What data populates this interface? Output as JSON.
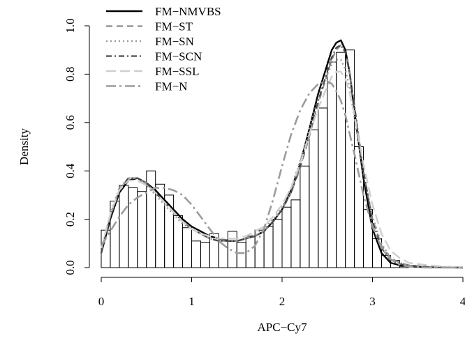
{
  "chart_data": {
    "type": "histogram",
    "title": "",
    "xlabel": "APC−Cy7",
    "ylabel": "Density",
    "xlim": [
      0,
      4
    ],
    "ylim": [
      0,
      1.0
    ],
    "x_ticks": [
      0,
      1,
      2,
      3,
      4
    ],
    "y_ticks": [
      0.0,
      0.2,
      0.4,
      0.6,
      0.8,
      1.0
    ],
    "x_tick_labels": [
      "0",
      "1",
      "2",
      "3",
      "4"
    ],
    "y_tick_labels": [
      "0.0",
      "0.2",
      "0.4",
      "0.6",
      "0.8",
      "1.0"
    ],
    "grid": false,
    "legend_position": "top-left",
    "histogram": {
      "bin_width": 0.1,
      "bin_starts": [
        0.0,
        0.1,
        0.2,
        0.3,
        0.4,
        0.5,
        0.6,
        0.7,
        0.8,
        0.9,
        1.0,
        1.1,
        1.2,
        1.3,
        1.4,
        1.5,
        1.6,
        1.7,
        1.8,
        1.9,
        2.0,
        2.1,
        2.2,
        2.3,
        2.4,
        2.5,
        2.6,
        2.7,
        2.8,
        2.9,
        3.0,
        3.1,
        3.2,
        3.3
      ],
      "densities": [
        0.155,
        0.275,
        0.34,
        0.33,
        0.315,
        0.4,
        0.345,
        0.3,
        0.215,
        0.165,
        0.11,
        0.105,
        0.14,
        0.115,
        0.15,
        0.105,
        0.13,
        0.155,
        0.17,
        0.2,
        0.25,
        0.28,
        0.42,
        0.57,
        0.66,
        0.85,
        0.89,
        0.9,
        0.5,
        0.24,
        0.12,
        0.05,
        0.03,
        0.005
      ]
    },
    "series": [
      {
        "name": "FM−NMVBS",
        "line_style": "solid",
        "color": "#000000",
        "x": [
          0.0,
          0.1,
          0.2,
          0.3,
          0.4,
          0.5,
          0.6,
          0.7,
          0.8,
          0.9,
          1.0,
          1.1,
          1.2,
          1.3,
          1.4,
          1.5,
          1.6,
          1.7,
          1.8,
          1.9,
          2.0,
          2.1,
          2.2,
          2.3,
          2.4,
          2.5,
          2.55,
          2.6,
          2.65,
          2.7,
          2.75,
          2.8,
          2.9,
          3.0,
          3.1,
          3.2,
          3.3,
          3.4,
          3.6,
          3.8,
          4.0
        ],
        "y": [
          0.06,
          0.2,
          0.31,
          0.36,
          0.37,
          0.35,
          0.32,
          0.28,
          0.24,
          0.2,
          0.17,
          0.15,
          0.13,
          0.12,
          0.11,
          0.11,
          0.12,
          0.13,
          0.15,
          0.19,
          0.24,
          0.32,
          0.43,
          0.57,
          0.72,
          0.84,
          0.9,
          0.93,
          0.94,
          0.9,
          0.8,
          0.65,
          0.37,
          0.16,
          0.06,
          0.02,
          0.01,
          0.005,
          0.002,
          0.001,
          0.0
        ]
      },
      {
        "name": "FM−ST",
        "line_style": "dashed",
        "color": "#8a8a8a",
        "x": [
          0.0,
          0.1,
          0.2,
          0.3,
          0.4,
          0.5,
          0.6,
          0.7,
          0.8,
          0.9,
          1.0,
          1.1,
          1.2,
          1.3,
          1.4,
          1.5,
          1.6,
          1.7,
          1.8,
          1.9,
          2.0,
          2.1,
          2.2,
          2.3,
          2.4,
          2.5,
          2.55,
          2.6,
          2.65,
          2.7,
          2.75,
          2.8,
          2.9,
          3.0,
          3.1,
          3.2,
          3.3,
          3.4,
          3.6,
          3.8,
          4.0
        ],
        "y": [
          0.06,
          0.21,
          0.32,
          0.37,
          0.37,
          0.35,
          0.31,
          0.27,
          0.23,
          0.19,
          0.16,
          0.14,
          0.12,
          0.11,
          0.11,
          0.11,
          0.12,
          0.13,
          0.15,
          0.19,
          0.24,
          0.31,
          0.41,
          0.54,
          0.68,
          0.8,
          0.86,
          0.9,
          0.92,
          0.89,
          0.8,
          0.67,
          0.4,
          0.2,
          0.09,
          0.04,
          0.02,
          0.01,
          0.004,
          0.002,
          0.001
        ]
      },
      {
        "name": "FM−SN",
        "line_style": "dotted",
        "color": "#9a9a9a",
        "x": [
          0.0,
          0.1,
          0.2,
          0.3,
          0.4,
          0.5,
          0.6,
          0.7,
          0.8,
          0.9,
          1.0,
          1.1,
          1.2,
          1.3,
          1.4,
          1.5,
          1.6,
          1.7,
          1.8,
          1.9,
          2.0,
          2.1,
          2.2,
          2.3,
          2.4,
          2.5,
          2.55,
          2.6,
          2.65,
          2.7,
          2.75,
          2.8,
          2.9,
          3.0,
          3.1,
          3.2,
          3.3,
          3.4,
          3.6,
          3.8,
          4.0
        ],
        "y": [
          0.07,
          0.22,
          0.33,
          0.37,
          0.37,
          0.34,
          0.3,
          0.26,
          0.22,
          0.18,
          0.16,
          0.14,
          0.12,
          0.11,
          0.11,
          0.11,
          0.12,
          0.14,
          0.16,
          0.2,
          0.25,
          0.33,
          0.44,
          0.57,
          0.7,
          0.8,
          0.84,
          0.86,
          0.86,
          0.82,
          0.74,
          0.62,
          0.39,
          0.21,
          0.1,
          0.04,
          0.02,
          0.01,
          0.003,
          0.001,
          0.0
        ]
      },
      {
        "name": "FM−SCN",
        "line_style": "dash-dot",
        "color": "#4a4a4a",
        "x": [
          0.0,
          0.1,
          0.2,
          0.3,
          0.4,
          0.5,
          0.6,
          0.7,
          0.8,
          0.9,
          1.0,
          1.1,
          1.2,
          1.3,
          1.4,
          1.5,
          1.6,
          1.7,
          1.8,
          1.9,
          2.0,
          2.1,
          2.2,
          2.3,
          2.4,
          2.5,
          2.55,
          2.6,
          2.65,
          2.7,
          2.75,
          2.8,
          2.9,
          3.0,
          3.1,
          3.2,
          3.3,
          3.4,
          3.6,
          3.8,
          4.0
        ],
        "y": [
          0.06,
          0.21,
          0.32,
          0.37,
          0.37,
          0.35,
          0.31,
          0.27,
          0.23,
          0.19,
          0.16,
          0.14,
          0.12,
          0.11,
          0.11,
          0.11,
          0.12,
          0.13,
          0.15,
          0.19,
          0.24,
          0.31,
          0.42,
          0.55,
          0.69,
          0.81,
          0.87,
          0.91,
          0.92,
          0.89,
          0.8,
          0.67,
          0.4,
          0.19,
          0.08,
          0.03,
          0.015,
          0.008,
          0.003,
          0.001,
          0.0
        ]
      },
      {
        "name": "FM−SSL",
        "line_style": "long-dash",
        "color": "#cfcfcf",
        "x": [
          0.0,
          0.1,
          0.2,
          0.3,
          0.4,
          0.5,
          0.6,
          0.7,
          0.8,
          0.9,
          1.0,
          1.1,
          1.2,
          1.3,
          1.4,
          1.5,
          1.6,
          1.7,
          1.8,
          1.9,
          2.0,
          2.1,
          2.2,
          2.3,
          2.4,
          2.5,
          2.55,
          2.6,
          2.65,
          2.7,
          2.75,
          2.8,
          2.9,
          3.0,
          3.1,
          3.2,
          3.3,
          3.4,
          3.6,
          3.8,
          4.0
        ],
        "y": [
          0.08,
          0.22,
          0.32,
          0.36,
          0.36,
          0.34,
          0.31,
          0.27,
          0.23,
          0.19,
          0.16,
          0.14,
          0.13,
          0.12,
          0.12,
          0.12,
          0.13,
          0.15,
          0.17,
          0.21,
          0.26,
          0.33,
          0.43,
          0.55,
          0.66,
          0.75,
          0.79,
          0.81,
          0.81,
          0.78,
          0.72,
          0.63,
          0.43,
          0.26,
          0.14,
          0.07,
          0.04,
          0.02,
          0.01,
          0.004,
          0.002
        ]
      },
      {
        "name": "FM−N",
        "line_style": "long-dash-dot",
        "color": "#9c9c9c",
        "x": [
          0.0,
          0.1,
          0.2,
          0.3,
          0.4,
          0.5,
          0.6,
          0.7,
          0.8,
          0.9,
          1.0,
          1.1,
          1.2,
          1.3,
          1.4,
          1.5,
          1.6,
          1.7,
          1.8,
          1.9,
          2.0,
          2.1,
          2.2,
          2.3,
          2.4,
          2.5,
          2.55,
          2.6,
          2.65,
          2.7,
          2.75,
          2.8,
          2.9,
          3.0,
          3.1,
          3.2,
          3.3,
          3.4,
          3.6,
          3.8,
          4.0
        ],
        "y": [
          0.09,
          0.15,
          0.21,
          0.26,
          0.29,
          0.31,
          0.33,
          0.33,
          0.32,
          0.3,
          0.26,
          0.21,
          0.16,
          0.11,
          0.08,
          0.06,
          0.06,
          0.09,
          0.16,
          0.28,
          0.42,
          0.55,
          0.65,
          0.72,
          0.76,
          0.77,
          0.76,
          0.73,
          0.69,
          0.63,
          0.55,
          0.47,
          0.3,
          0.17,
          0.08,
          0.035,
          0.013,
          0.004,
          0.0,
          0.0,
          0.0
        ]
      }
    ]
  }
}
